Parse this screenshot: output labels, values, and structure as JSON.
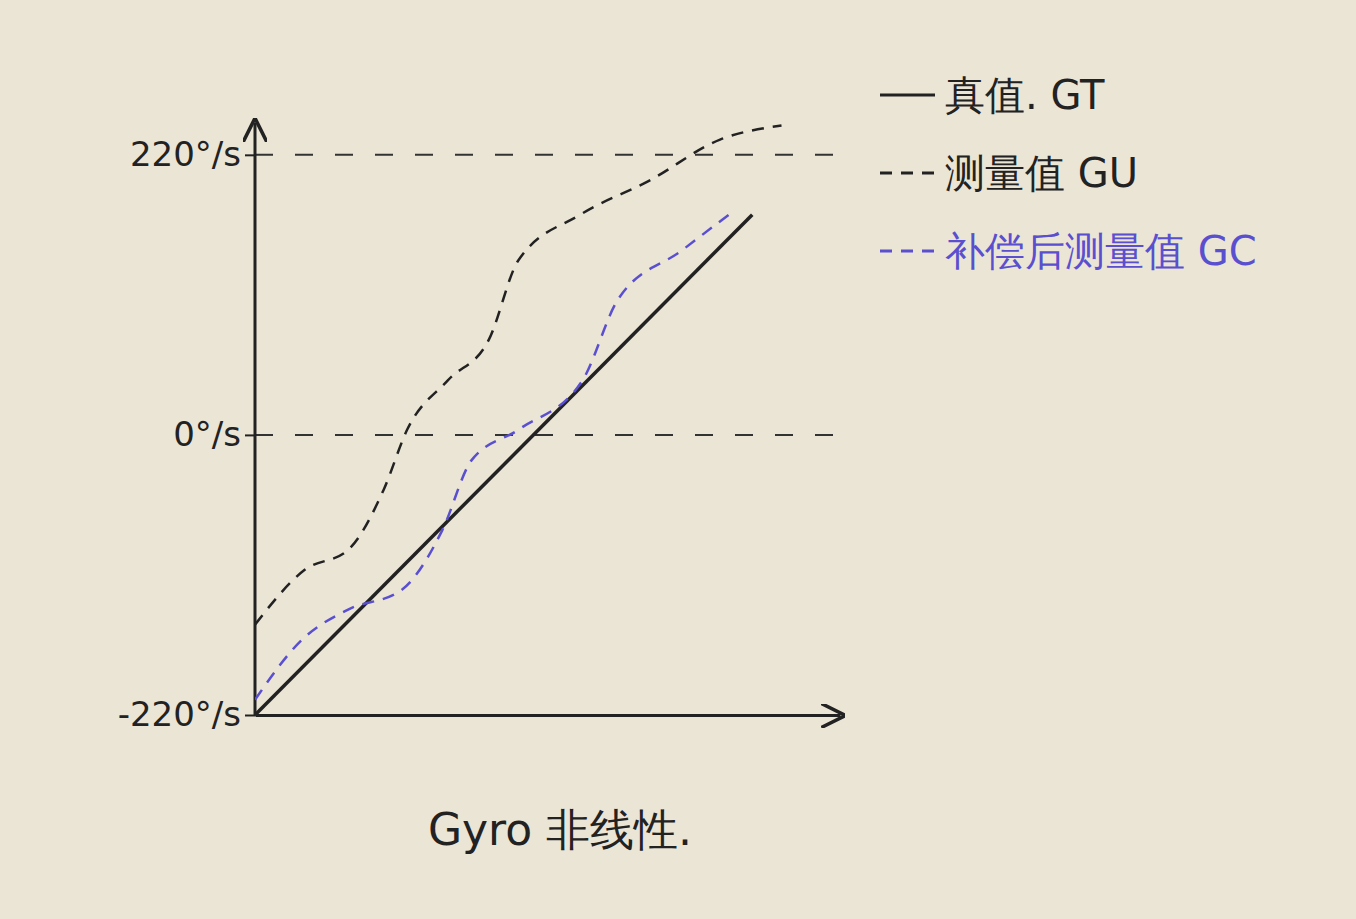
{
  "chart_data": {
    "type": "line",
    "title": "Gyro 非线性.",
    "xlim": [
      0,
      100
    ],
    "ylim": [
      -220,
      245
    ],
    "yticks": [
      {
        "value": -220,
        "label": "-220°/s"
      },
      {
        "value": 0,
        "label": "0°/s"
      },
      {
        "value": 220,
        "label": "220°/s"
      }
    ],
    "tick_labels": "y",
    "grid": true,
    "legend": "top-right",
    "series": [
      {
        "name": "真值. GT",
        "color": "#222222",
        "line_style": "solid",
        "x": [
          0,
          85
        ],
        "values": [
          -220,
          173
        ]
      },
      {
        "name": "测量值 GU",
        "color": "#222222",
        "line_style": "dashed",
        "x": [
          0,
          8.5,
          16,
          22,
          26,
          33,
          40,
          45,
          55.6,
          67.5,
          79.5,
          90
        ],
        "values": [
          -149,
          -106,
          -90,
          -43,
          4,
          43,
          75,
          137,
          173,
          200,
          232,
          243
        ]
      },
      {
        "name": "补偿后测量值 GC",
        "color": "#5a4fcf",
        "line_style": "dashed",
        "x": [
          0,
          8,
          16,
          25,
          32,
          37,
          45,
          56,
          62,
          73,
          81
        ],
        "values": [
          -208,
          -161,
          -137,
          -122,
          -75,
          -20,
          4,
          43,
          106,
          145,
          173
        ]
      }
    ]
  }
}
